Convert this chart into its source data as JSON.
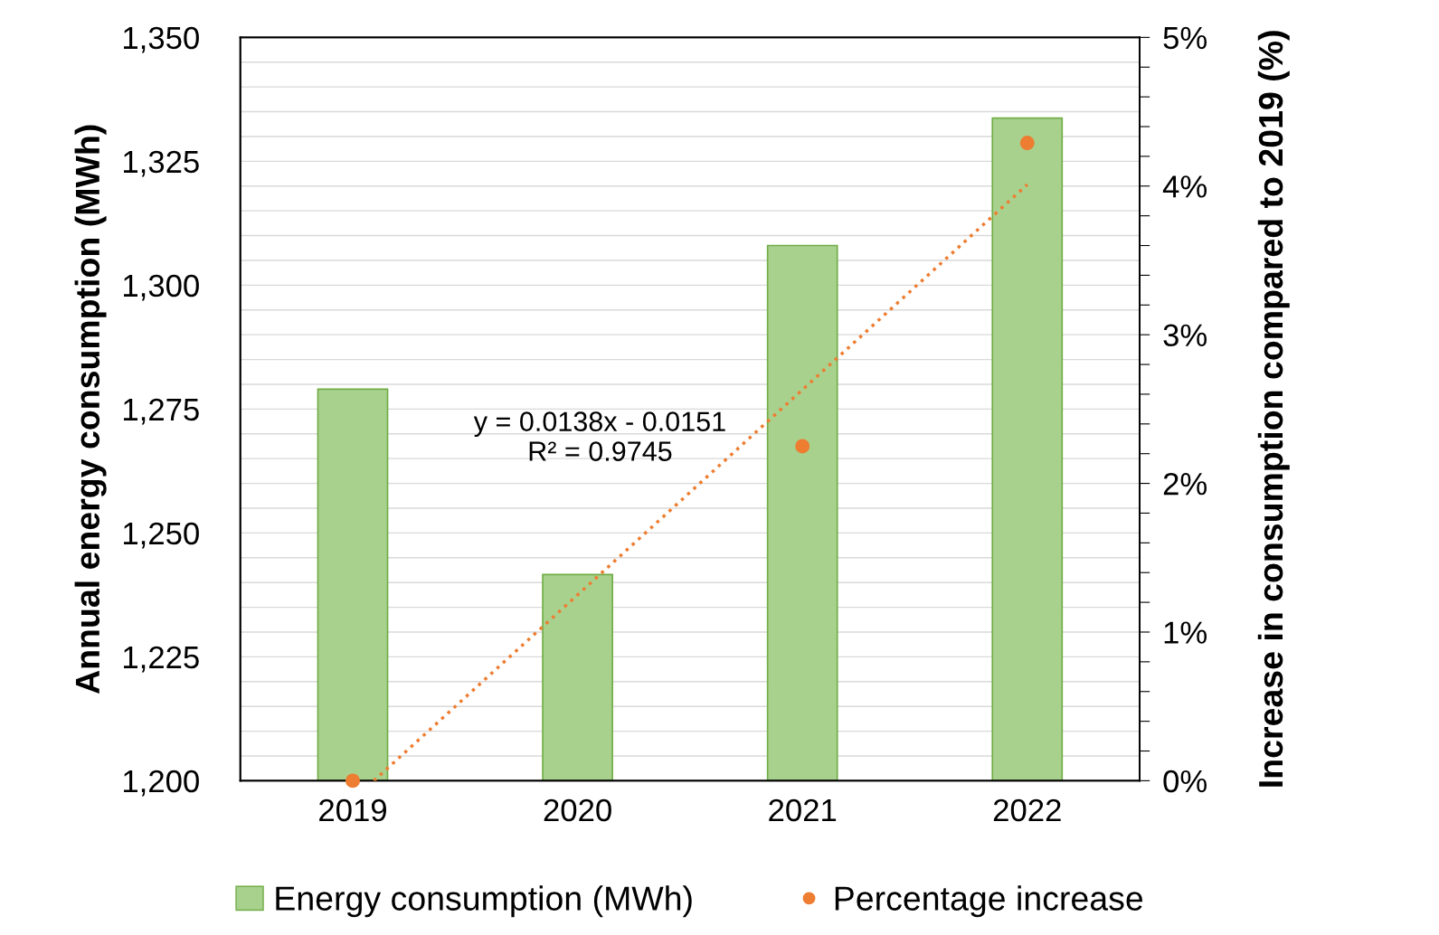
{
  "chart_data": {
    "type": "bar",
    "x": [
      2019,
      2020,
      2021,
      2022
    ],
    "xlim": [
      2018.5,
      2022.5
    ],
    "xticks": [
      2019,
      2020,
      2021,
      2022
    ],
    "ylabel": "Annual energy consumption (MWh)",
    "y2label": "Increase in consumption compared to 2019 (%)",
    "ylim": [
      1200,
      1350
    ],
    "yticks": [
      {
        "value": 1200,
        "label": "1,200"
      },
      {
        "value": 1205,
        "label": null
      },
      {
        "value": 1210,
        "label": null
      },
      {
        "value": 1215,
        "label": null
      },
      {
        "value": 1220,
        "label": null
      },
      {
        "value": 1225,
        "label": "1,225"
      },
      {
        "value": 1230,
        "label": null
      },
      {
        "value": 1235,
        "label": null
      },
      {
        "value": 1240,
        "label": null
      },
      {
        "value": 1245,
        "label": null
      },
      {
        "value": 1250,
        "label": "1,250"
      },
      {
        "value": 1255,
        "label": null
      },
      {
        "value": 1260,
        "label": null
      },
      {
        "value": 1265,
        "label": null
      },
      {
        "value": 1270,
        "label": null
      },
      {
        "value": 1275,
        "label": "1,275"
      },
      {
        "value": 1280,
        "label": null
      },
      {
        "value": 1285,
        "label": null
      },
      {
        "value": 1290,
        "label": null
      },
      {
        "value": 1295,
        "label": null
      },
      {
        "value": 1300,
        "label": "1,300"
      },
      {
        "value": 1305,
        "label": null
      },
      {
        "value": 1310,
        "label": null
      },
      {
        "value": 1315,
        "label": null
      },
      {
        "value": 1320,
        "label": null
      },
      {
        "value": 1325,
        "label": "1,325"
      },
      {
        "value": 1330,
        "label": null
      },
      {
        "value": 1335,
        "label": null
      },
      {
        "value": 1340,
        "label": null
      },
      {
        "value": 1345,
        "label": null
      },
      {
        "value": 1350,
        "label": "1,350"
      }
    ],
    "y2lim": [
      0,
      5
    ],
    "y2ticks": [
      {
        "value": 0,
        "label": "0%"
      },
      {
        "value": 0.2,
        "label": null
      },
      {
        "value": 0.4,
        "label": null
      },
      {
        "value": 0.6,
        "label": null
      },
      {
        "value": 0.8,
        "label": null
      },
      {
        "value": 1,
        "label": "1%"
      },
      {
        "value": 1.2,
        "label": null
      },
      {
        "value": 1.4,
        "label": null
      },
      {
        "value": 1.6,
        "label": null
      },
      {
        "value": 1.8,
        "label": null
      },
      {
        "value": 2,
        "label": "2%"
      },
      {
        "value": 2.2,
        "label": null
      },
      {
        "value": 2.4,
        "label": null
      },
      {
        "value": 2.6,
        "label": null
      },
      {
        "value": 2.8,
        "label": null
      },
      {
        "value": 3,
        "label": "3%"
      },
      {
        "value": 3.2,
        "label": null
      },
      {
        "value": 3.4,
        "label": null
      },
      {
        "value": 3.6,
        "label": null
      },
      {
        "value": 3.8,
        "label": null
      },
      {
        "value": 4,
        "label": "4%"
      },
      {
        "value": 4.2,
        "label": null
      },
      {
        "value": 4.4,
        "label": null
      },
      {
        "value": 4.6,
        "label": null
      },
      {
        "value": 4.8,
        "label": null
      },
      {
        "value": 5,
        "label": "5%"
      }
    ],
    "grid": "y",
    "legend": "bottom",
    "annotations": [
      "y = 0.0138x - 0.0151\nR² = 0.9745"
    ],
    "series": [
      {
        "name": "Energy consumption (MWh)",
        "color": "#a9d18e",
        "values": [
          1279,
          1241.6,
          1308,
          1333.7
        ]
      },
      {
        "name": "Percentage increase",
        "type": "scatter",
        "axis": "y2",
        "marker": "circle",
        "color": "#ed7d31",
        "values": [
          0,
          null,
          2.25,
          4.29
        ]
      },
      {
        "type": "line",
        "axis": "y2",
        "line_style": "dotted",
        "color": "#ed7d31",
        "x": [
          2019.094,
          2022
        ],
        "values": [
          0,
          4.01
        ]
      }
    ]
  }
}
